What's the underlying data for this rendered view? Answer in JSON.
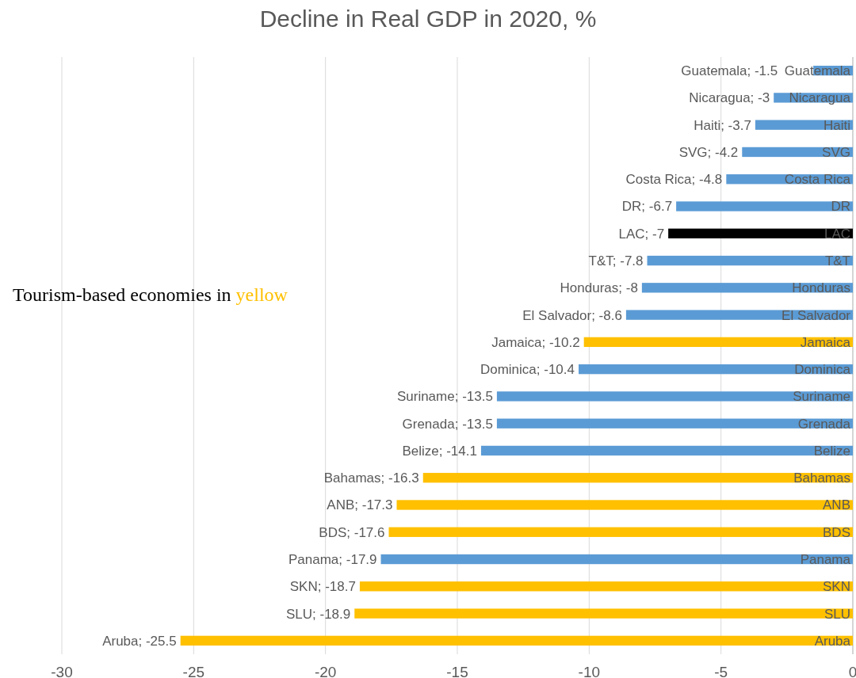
{
  "chart_data": {
    "type": "bar",
    "orientation": "horizontal",
    "title": "Decline in Real GDP in 2020, %",
    "categories": [
      "Guatemala",
      "Nicaragua",
      "Haiti",
      "SVG",
      "Costa Rica",
      "DR",
      "LAC",
      "T&T",
      "Honduras",
      "El Salvador",
      "Jamaica",
      "Dominica",
      "Suriname",
      "Grenada",
      "Belize",
      "Bahamas",
      "ANB",
      "BDS",
      "Panama",
      "SKN",
      "SLU",
      "Aruba"
    ],
    "values": [
      -1.5,
      -3,
      -3.7,
      -4.2,
      -4.8,
      -6.7,
      -7,
      -7.8,
      -8,
      -8.6,
      -10.2,
      -10.4,
      -13.5,
      -13.5,
      -14.1,
      -16.3,
      -17.3,
      -17.6,
      -17.9,
      -18.7,
      -18.9,
      -25.5
    ],
    "colors": [
      "#5b9bd5",
      "#5b9bd5",
      "#5b9bd5",
      "#5b9bd5",
      "#5b9bd5",
      "#5b9bd5",
      "#000000",
      "#5b9bd5",
      "#5b9bd5",
      "#5b9bd5",
      "#ffc000",
      "#5b9bd5",
      "#5b9bd5",
      "#5b9bd5",
      "#5b9bd5",
      "#ffc000",
      "#ffc000",
      "#ffc000",
      "#5b9bd5",
      "#ffc000",
      "#ffc000",
      "#ffc000"
    ],
    "value_labels": [
      "Guatemala; -1.5",
      "Nicaragua; -3",
      "Haiti; -3.7",
      "SVG; -4.2",
      "Costa Rica; -4.8",
      "DR; -6.7",
      "LAC; -7",
      "T&T; -7.8",
      "Honduras; -8",
      "El Salvador; -8.6",
      "Jamaica; -10.2",
      "Dominica; -10.4",
      "Suriname; -13.5",
      "Grenada; -13.5",
      "Belize; -14.1",
      "Bahamas; -16.3",
      "ANB; -17.3",
      "BDS; -17.6",
      "Panama; -17.9",
      "SKN; -18.7",
      "SLU; -18.9",
      "Aruba; -25.5"
    ],
    "xlim": [
      -30,
      0
    ],
    "xticks": [
      -30,
      -25,
      -20,
      -15,
      -10,
      -5,
      0
    ],
    "grid": "x",
    "annotations": [
      "Tourism-based economies in yellow"
    ]
  }
}
